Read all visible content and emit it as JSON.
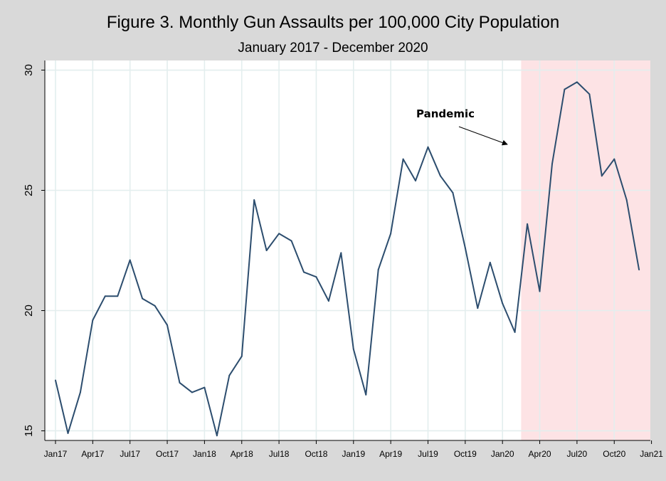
{
  "chart_data": {
    "type": "line",
    "title": "Figure 3. Monthly Gun Assaults per 100,000 City Population",
    "subtitle": "January 2017 - December 2020",
    "xlabel": "",
    "ylabel": "",
    "ylim": [
      14.6,
      30.4
    ],
    "yticks": [
      15,
      20,
      25,
      30
    ],
    "xticks": [
      "Jan17",
      "Apr17",
      "Jul17",
      "Oct17",
      "Jan18",
      "Apr18",
      "Jul18",
      "Oct18",
      "Jan19",
      "Apr19",
      "Jul19",
      "Oct19",
      "Jan20",
      "Apr20",
      "Jul20",
      "Oct20",
      "Jan21"
    ],
    "grid": true,
    "x": [
      "Jan17",
      "Feb17",
      "Mar17",
      "Apr17",
      "May17",
      "Jun17",
      "Jul17",
      "Aug17",
      "Sep17",
      "Oct17",
      "Nov17",
      "Dec17",
      "Jan18",
      "Feb18",
      "Mar18",
      "Apr18",
      "May18",
      "Jun18",
      "Jul18",
      "Aug18",
      "Sep18",
      "Oct18",
      "Nov18",
      "Dec18",
      "Jan19",
      "Feb19",
      "Mar19",
      "Apr19",
      "May19",
      "Jun19",
      "Jul19",
      "Aug19",
      "Sep19",
      "Oct19",
      "Nov19",
      "Dec19",
      "Jan20",
      "Feb20",
      "Mar20",
      "Apr20",
      "May20",
      "Jun20",
      "Jul20",
      "Aug20",
      "Sep20",
      "Oct20",
      "Nov20",
      "Dec20"
    ],
    "series": [
      {
        "values": [
          17.1,
          14.9,
          16.6,
          19.6,
          20.6,
          20.6,
          22.1,
          20.5,
          20.2,
          19.4,
          17.0,
          16.6,
          16.8,
          14.8,
          17.3,
          18.1,
          24.6,
          22.5,
          23.2,
          22.9,
          21.6,
          21.4,
          20.4,
          22.4,
          18.4,
          16.5,
          21.7,
          23.2,
          26.3,
          25.4,
          26.8,
          25.6,
          24.9,
          22.6,
          20.1,
          22.0,
          20.3,
          19.1,
          23.6,
          20.8,
          26.1,
          29.2,
          29.5,
          29.0,
          25.6,
          26.3,
          24.6,
          21.7
        ],
        "color": "#2c4d6e"
      }
    ],
    "shaded_region": {
      "from": "Mar20",
      "to": "Dec20",
      "color": "#fde3e5"
    },
    "annotations": [
      {
        "text": "Pandemic",
        "arrow_to": "Mar20"
      }
    ]
  }
}
